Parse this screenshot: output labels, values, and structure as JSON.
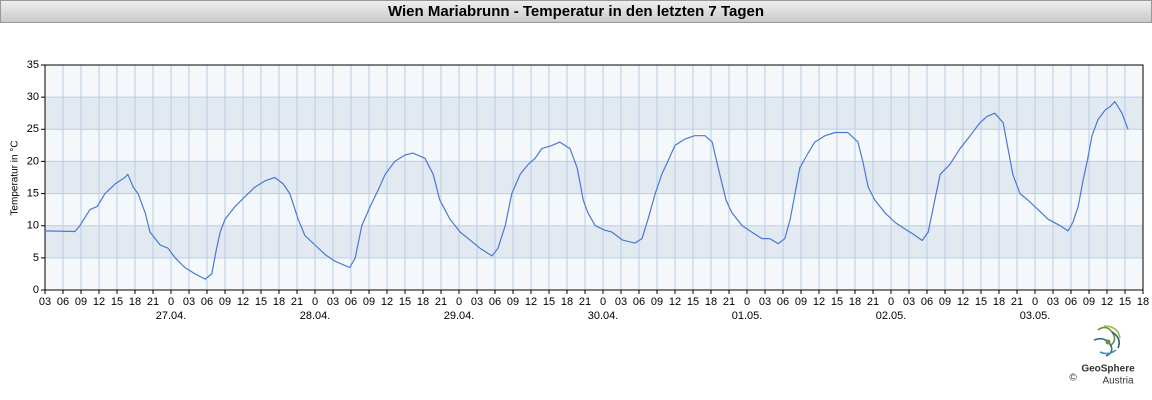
{
  "header": {
    "title": "Wien Mariabrunn - Temperatur in den letzten 7 Tagen"
  },
  "chart_data": {
    "type": "line",
    "y_label": "Temperatur in °C",
    "color": "#4a78d6",
    "grid": true,
    "xlim": [
      3,
      186
    ],
    "ylim": [
      0,
      35
    ],
    "yticks": [
      0,
      5,
      10,
      15,
      20,
      25,
      30,
      35
    ],
    "xticks": [
      {
        "value": 3,
        "label": "03"
      },
      {
        "value": 6,
        "label": "06"
      },
      {
        "value": 9,
        "label": "09"
      },
      {
        "value": 12,
        "label": "12"
      },
      {
        "value": 15,
        "label": "15"
      },
      {
        "value": 18,
        "label": "18"
      },
      {
        "value": 21,
        "label": "21"
      },
      {
        "value": 24,
        "label": "0"
      },
      {
        "value": 27,
        "label": "03"
      },
      {
        "value": 30,
        "label": "06"
      },
      {
        "value": 33,
        "label": "09"
      },
      {
        "value": 36,
        "label": "12"
      },
      {
        "value": 39,
        "label": "15"
      },
      {
        "value": 42,
        "label": "18"
      },
      {
        "value": 45,
        "label": "21"
      },
      {
        "value": 48,
        "label": "0"
      },
      {
        "value": 51,
        "label": "03"
      },
      {
        "value": 54,
        "label": "06"
      },
      {
        "value": 57,
        "label": "09"
      },
      {
        "value": 60,
        "label": "12"
      },
      {
        "value": 63,
        "label": "15"
      },
      {
        "value": 66,
        "label": "18"
      },
      {
        "value": 69,
        "label": "21"
      },
      {
        "value": 72,
        "label": "0"
      },
      {
        "value": 75,
        "label": "03"
      },
      {
        "value": 78,
        "label": "06"
      },
      {
        "value": 81,
        "label": "09"
      },
      {
        "value": 84,
        "label": "12"
      },
      {
        "value": 87,
        "label": "15"
      },
      {
        "value": 90,
        "label": "18"
      },
      {
        "value": 93,
        "label": "21"
      },
      {
        "value": 96,
        "label": "0"
      },
      {
        "value": 99,
        "label": "03"
      },
      {
        "value": 102,
        "label": "06"
      },
      {
        "value": 105,
        "label": "09"
      },
      {
        "value": 108,
        "label": "12"
      },
      {
        "value": 111,
        "label": "15"
      },
      {
        "value": 114,
        "label": "18"
      },
      {
        "value": 117,
        "label": "21"
      },
      {
        "value": 120,
        "label": "0"
      },
      {
        "value": 123,
        "label": "03"
      },
      {
        "value": 126,
        "label": "06"
      },
      {
        "value": 129,
        "label": "09"
      },
      {
        "value": 132,
        "label": "12"
      },
      {
        "value": 135,
        "label": "15"
      },
      {
        "value": 138,
        "label": "18"
      },
      {
        "value": 141,
        "label": "21"
      },
      {
        "value": 144,
        "label": "0"
      },
      {
        "value": 147,
        "label": "03"
      },
      {
        "value": 150,
        "label": "06"
      },
      {
        "value": 153,
        "label": "09"
      },
      {
        "value": 156,
        "label": "12"
      },
      {
        "value": 159,
        "label": "15"
      },
      {
        "value": 162,
        "label": "18"
      },
      {
        "value": 165,
        "label": "21"
      },
      {
        "value": 168,
        "label": "0"
      },
      {
        "value": 171,
        "label": "03"
      },
      {
        "value": 174,
        "label": "06"
      },
      {
        "value": 177,
        "label": "09"
      },
      {
        "value": 180,
        "label": "12"
      },
      {
        "value": 183,
        "label": "15"
      },
      {
        "value": 186,
        "label": "18"
      }
    ],
    "date_labels": [
      {
        "value": 24,
        "label": "27.04."
      },
      {
        "value": 48,
        "label": "28.04."
      },
      {
        "value": 72,
        "label": "29.04."
      },
      {
        "value": 96,
        "label": "30.04."
      },
      {
        "value": 120,
        "label": "01.05."
      },
      {
        "value": 144,
        "label": "02.05."
      },
      {
        "value": 168,
        "label": "03.05."
      }
    ],
    "x": [
      3.0,
      8.0,
      8.8,
      10.5,
      11.7,
      13.0,
      14.7,
      16.3,
      16.8,
      17.7,
      18.5,
      19.7,
      20.5,
      22.2,
      23.5,
      24.7,
      26.3,
      28.0,
      29.7,
      30.8,
      31.5,
      32.2,
      33.0,
      34.7,
      36.3,
      38.0,
      39.7,
      41.3,
      42.7,
      43.8,
      45.2,
      46.3,
      48.0,
      49.7,
      51.3,
      53.0,
      53.8,
      54.7,
      55.8,
      57.2,
      58.5,
      59.7,
      61.3,
      63.0,
      64.3,
      66.3,
      67.7,
      68.8,
      70.5,
      72.2,
      74.2,
      75.5,
      77.5,
      78.5,
      79.7,
      80.8,
      82.2,
      83.5,
      84.7,
      85.8,
      87.5,
      88.8,
      90.5,
      91.7,
      92.7,
      93.5,
      94.7,
      96.3,
      97.5,
      99.2,
      101.3,
      102.5,
      103.5,
      104.7,
      105.8,
      106.8,
      108.0,
      109.7,
      111.3,
      113.0,
      114.2,
      115.2,
      116.5,
      117.5,
      119.2,
      120.8,
      122.5,
      123.8,
      125.2,
      126.3,
      127.2,
      128.0,
      128.8,
      130.0,
      131.3,
      133.0,
      134.7,
      136.8,
      138.5,
      139.3,
      140.2,
      141.3,
      143.0,
      144.7,
      146.3,
      148.0,
      149.2,
      150.2,
      151.3,
      152.2,
      153.8,
      155.5,
      157.2,
      158.8,
      160.0,
      161.3,
      162.7,
      163.5,
      164.3,
      165.5,
      166.8,
      168.5,
      170.2,
      172.2,
      173.5,
      174.3,
      175.2,
      176.0,
      176.7,
      177.5,
      178.5,
      179.7,
      180.5,
      181.3,
      182.5,
      183.5
    ],
    "values": [
      9.2,
      9.1,
      10,
      12.5,
      13,
      15,
      16.5,
      17.5,
      18,
      16,
      15,
      12,
      9,
      7,
      6.5,
      5,
      3.5,
      2.5,
      1.7,
      2.5,
      6,
      9,
      11,
      13,
      14.5,
      16,
      17,
      17.5,
      16.5,
      15,
      11,
      8.5,
      7,
      5.5,
      4.5,
      3.8,
      3.5,
      5,
      10,
      13,
      15.5,
      18,
      20,
      21,
      21.3,
      20.5,
      18,
      14,
      11,
      9,
      7.5,
      6.5,
      5.3,
      6.5,
      10,
      15,
      18,
      19.5,
      20.5,
      22,
      22.5,
      23,
      22,
      19,
      14,
      12,
      10,
      9.3,
      9,
      7.8,
      7.3,
      8,
      11,
      15,
      18,
      20,
      22.5,
      23.5,
      24,
      24,
      23,
      19,
      14,
      12,
      10,
      9,
      8,
      8,
      7.2,
      8,
      11,
      15,
      19,
      21,
      23,
      24,
      24.5,
      24.5,
      23,
      20,
      16,
      14,
      12,
      10.5,
      9.5,
      8.5,
      7.7,
      9,
      14,
      18,
      19.5,
      22,
      24,
      26,
      27,
      27.5,
      26,
      22,
      18,
      15,
      14,
      12.5,
      11,
      10,
      9.2,
      10.5,
      13,
      17,
      20,
      24,
      26.5,
      28,
      28.5,
      29.3,
      27.5,
      25
    ]
  },
  "logo": {
    "name": "GeoSphere",
    "sub": "Austria",
    "copyright": "©"
  }
}
